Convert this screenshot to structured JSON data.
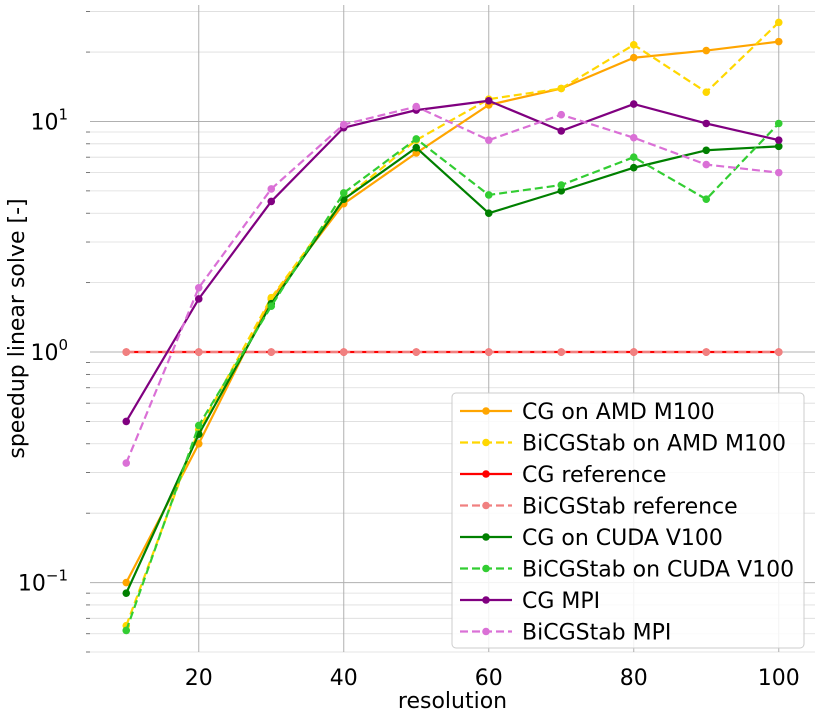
{
  "chart_data": {
    "type": "line",
    "xlabel": "resolution",
    "ylabel": "speedup linear solve [-]",
    "yscale": "log",
    "xlim": [
      5,
      105
    ],
    "ylim": [
      0.05,
      32
    ],
    "grid": true,
    "legend_position": "lower-right",
    "x_ticks": [
      20,
      40,
      60,
      80,
      100
    ],
    "y_ticks": [
      {
        "value": 0.1,
        "base": "10",
        "exp": "−1"
      },
      {
        "value": 1,
        "label": "10⁰",
        "base": "10",
        "exp": "0"
      },
      {
        "value": 10,
        "base": "10",
        "exp": "1"
      }
    ],
    "x": [
      10,
      20,
      30,
      40,
      50,
      60,
      70,
      80,
      90,
      100
    ],
    "series": [
      {
        "name": "CG on AMD M100",
        "color": "#FFA500",
        "dash": "solid",
        "values": [
          0.1,
          0.4,
          1.7,
          4.4,
          7.3,
          11.8,
          13.9,
          18.9,
          20.3,
          22.2
        ]
      },
      {
        "name": "BiCGStab on AMD M100",
        "color": "#FFD700",
        "dash": "dashed",
        "values": [
          0.065,
          0.46,
          1.72,
          4.6,
          8.3,
          12.5,
          13.9,
          21.5,
          13.4,
          26.9
        ]
      },
      {
        "name": "CG reference",
        "color": "#FF0000",
        "dash": "solid",
        "values": [
          1.0,
          1.0,
          1.0,
          1.0,
          1.0,
          1.0,
          1.0,
          1.0,
          1.0,
          1.0
        ]
      },
      {
        "name": "BiCGStab reference",
        "color": "#F08080",
        "dash": "dashed",
        "values": [
          1.0,
          1.0,
          1.0,
          1.0,
          1.0,
          1.0,
          1.0,
          1.0,
          1.0,
          1.0
        ]
      },
      {
        "name": "CG on CUDA V100",
        "color": "#008000",
        "dash": "solid",
        "values": [
          0.09,
          0.44,
          1.62,
          4.6,
          7.7,
          4.0,
          5.0,
          6.3,
          7.5,
          7.8
        ]
      },
      {
        "name": "BiCGStab on CUDA V100",
        "color": "#32CD32",
        "dash": "dashed",
        "values": [
          0.062,
          0.48,
          1.58,
          4.9,
          8.4,
          4.8,
          5.3,
          7.0,
          4.6,
          9.8
        ]
      },
      {
        "name": "CG MPI",
        "color": "#800080",
        "dash": "solid",
        "values": [
          0.5,
          1.7,
          4.5,
          9.4,
          11.2,
          12.3,
          9.1,
          11.9,
          9.8,
          8.3
        ]
      },
      {
        "name": "BiCGStab MPI",
        "color": "#DA70D6",
        "dash": "dashed",
        "values": [
          0.33,
          1.9,
          5.1,
          9.7,
          11.6,
          8.3,
          10.7,
          8.5,
          6.5,
          6.0
        ]
      }
    ]
  }
}
